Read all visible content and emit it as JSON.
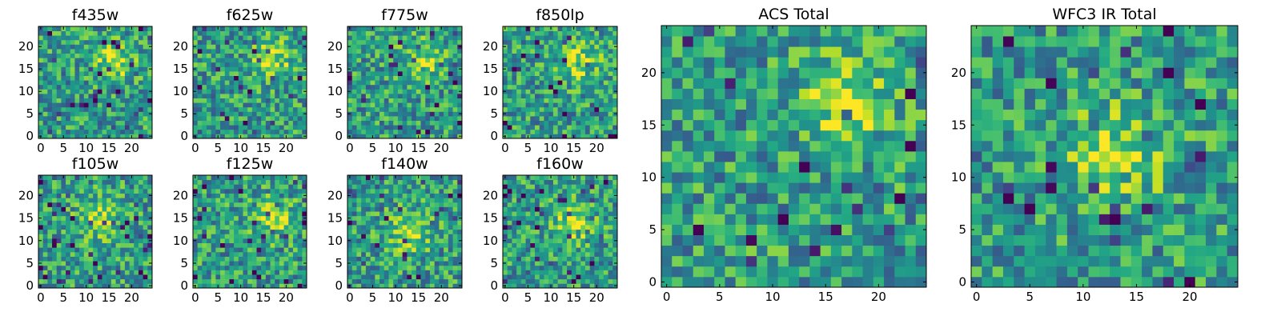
{
  "figure": {
    "description_type": "grid of 2D image panels (heatmaps)"
  },
  "chart_data": [
    {
      "type": "heatmap",
      "id": "f435w",
      "title": "f435w",
      "grid_size": [
        25,
        25
      ],
      "colormap": "viridis",
      "x_ticks": [
        "0",
        "5",
        "10",
        "15",
        "20"
      ],
      "y_ticks": [
        "0",
        "5",
        "10",
        "15",
        "20"
      ],
      "xlim": [
        -0.5,
        24.5
      ],
      "ylim": [
        -0.5,
        24.5
      ],
      "origin": "lower",
      "peak_center": [
        16,
        17
      ],
      "seed": 11
    },
    {
      "type": "heatmap",
      "id": "f625w",
      "title": "f625w",
      "grid_size": [
        25,
        25
      ],
      "colormap": "viridis",
      "x_ticks": [
        "0",
        "5",
        "10",
        "15",
        "20"
      ],
      "y_ticks": [
        "0",
        "5",
        "10",
        "15",
        "20"
      ],
      "xlim": [
        -0.5,
        24.5
      ],
      "ylim": [
        -0.5,
        24.5
      ],
      "origin": "lower",
      "peak_center": [
        17,
        17
      ],
      "seed": 23
    },
    {
      "type": "heatmap",
      "id": "f775w",
      "title": "f775w",
      "grid_size": [
        25,
        25
      ],
      "colormap": "viridis",
      "x_ticks": [
        "0",
        "5",
        "10",
        "15",
        "20"
      ],
      "y_ticks": [
        "0",
        "5",
        "10",
        "15",
        "20"
      ],
      "xlim": [
        -0.5,
        24.5
      ],
      "ylim": [
        -0.5,
        24.5
      ],
      "origin": "lower",
      "peak_center": [
        16,
        17
      ],
      "seed": 37
    },
    {
      "type": "heatmap",
      "id": "f850lp",
      "title": "f850lp",
      "grid_size": [
        25,
        25
      ],
      "colormap": "viridis",
      "x_ticks": [
        "0",
        "5",
        "10",
        "15",
        "20"
      ],
      "y_ticks": [
        "0",
        "5",
        "10",
        "15",
        "20"
      ],
      "xlim": [
        -0.5,
        24.5
      ],
      "ylim": [
        -0.5,
        24.5
      ],
      "origin": "lower",
      "peak_center": [
        16,
        17
      ],
      "seed": 41
    },
    {
      "type": "heatmap",
      "id": "f105w",
      "title": "f105w",
      "grid_size": [
        25,
        25
      ],
      "colormap": "viridis",
      "x_ticks": [
        "0",
        "5",
        "10",
        "15",
        "20"
      ],
      "y_ticks": [
        "0",
        "5",
        "10",
        "15",
        "20"
      ],
      "xlim": [
        -0.5,
        24.5
      ],
      "ylim": [
        -0.5,
        24.5
      ],
      "origin": "lower",
      "peak_center": [
        13,
        15
      ],
      "seed": 53
    },
    {
      "type": "heatmap",
      "id": "f125w",
      "title": "f125w",
      "grid_size": [
        25,
        25
      ],
      "colormap": "viridis",
      "x_ticks": [
        "0",
        "5",
        "10",
        "15",
        "20"
      ],
      "y_ticks": [
        "0",
        "5",
        "10",
        "15",
        "20"
      ],
      "xlim": [
        -0.5,
        24.5
      ],
      "ylim": [
        -0.5,
        24.5
      ],
      "origin": "lower",
      "peak_center": [
        17,
        15
      ],
      "seed": 67
    },
    {
      "type": "heatmap",
      "id": "f140w",
      "title": "f140w",
      "grid_size": [
        25,
        25
      ],
      "colormap": "viridis",
      "x_ticks": [
        "0",
        "5",
        "10",
        "15",
        "20"
      ],
      "y_ticks": [
        "0",
        "5",
        "10",
        "15",
        "20"
      ],
      "xlim": [
        -0.5,
        24.5
      ],
      "ylim": [
        -0.5,
        24.5
      ],
      "origin": "lower",
      "peak_center": [
        13,
        12
      ],
      "seed": 79
    },
    {
      "type": "heatmap",
      "id": "f160w",
      "title": "f160w",
      "grid_size": [
        25,
        25
      ],
      "colormap": "viridis",
      "x_ticks": [
        "0",
        "5",
        "10",
        "15",
        "20"
      ],
      "y_ticks": [
        "0",
        "5",
        "10",
        "15",
        "20"
      ],
      "xlim": [
        -0.5,
        24.5
      ],
      "ylim": [
        -0.5,
        24.5
      ],
      "origin": "lower",
      "peak_center": [
        15,
        14
      ],
      "seed": 83
    },
    {
      "type": "heatmap",
      "id": "acs-total",
      "title": "ACS Total",
      "grid_size": [
        25,
        25
      ],
      "colormap": "viridis",
      "x_ticks": [
        "0",
        "5",
        "10",
        "15",
        "20"
      ],
      "y_ticks": [
        "0",
        "5",
        "10",
        "15",
        "20"
      ],
      "xlim": [
        -0.5,
        24.5
      ],
      "ylim": [
        -0.5,
        24.5
      ],
      "origin": "lower",
      "peak_center": [
        17,
        17
      ],
      "seed": 97
    },
    {
      "type": "heatmap",
      "id": "wfc3-ir-total",
      "title": "WFC3 IR Total",
      "grid_size": [
        25,
        25
      ],
      "colormap": "viridis",
      "x_ticks": [
        "0",
        "5",
        "10",
        "15",
        "20"
      ],
      "y_ticks": [
        "0",
        "5",
        "10",
        "15",
        "20"
      ],
      "xlim": [
        -0.5,
        24.5
      ],
      "ylim": [
        -0.5,
        24.5
      ],
      "origin": "lower",
      "peak_center": [
        13,
        12
      ],
      "seed": 101
    }
  ]
}
